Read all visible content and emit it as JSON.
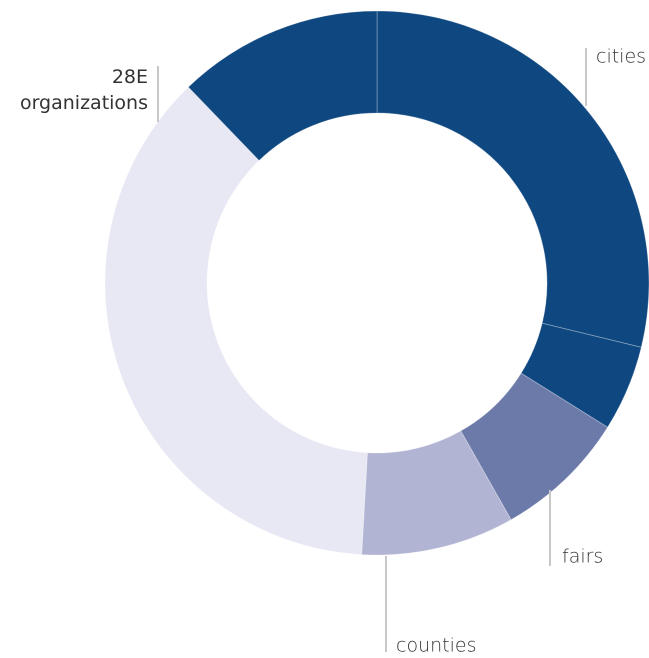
{
  "chart_data": {
    "type": "donut",
    "categories": [
      "cities",
      null,
      "fairs",
      "counties",
      null,
      "28E organizations"
    ],
    "values": [
      28.8,
      5.1,
      7.9,
      9.1,
      36.9,
      12.2
    ],
    "colors": [
      "#0f4880",
      "#0f4880",
      "#6b7aa8",
      "#b1b5d3",
      "#e8e8f4",
      "#0f4880"
    ]
  }
}
